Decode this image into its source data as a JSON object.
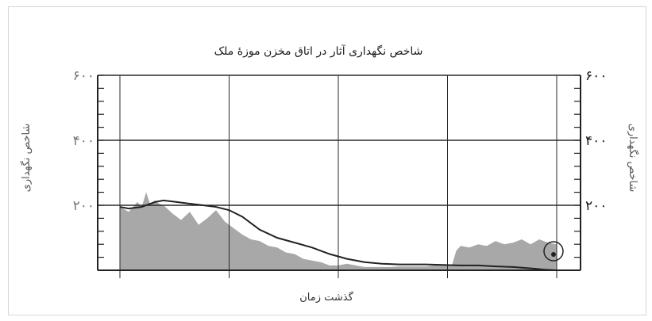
{
  "chart_data": {
    "type": "area",
    "title": "شاخص نگهداری آثار در اتاق مخزن موزهٔ ملک",
    "xlabel": "گذشت زمان",
    "ylabel": "شاخص نگهداری",
    "ylabel_right": "شاخص نگهداری",
    "ylim": [
      0,
      600
    ],
    "y_ticks": [
      200,
      400,
      600
    ],
    "y_tick_labels_left": [
      "۲۰۰",
      "۴۰۰",
      "۶۰۰"
    ],
    "y_tick_labels_right": [
      "۲۰۰",
      "۴۰۰",
      "۶۰۰"
    ],
    "x_gridlines": 5,
    "grid": true,
    "colors": {
      "area": "#a8a8a8",
      "line": "#222222",
      "grid": "#2a2a2a"
    },
    "series": [
      {
        "kind": "area",
        "x": [
          0,
          0.02,
          0.04,
          0.05,
          0.06,
          0.07,
          0.08,
          0.09,
          0.1,
          0.12,
          0.14,
          0.16,
          0.18,
          0.2,
          0.22,
          0.24,
          0.26,
          0.28,
          0.3,
          0.32,
          0.34,
          0.36,
          0.38,
          0.4,
          0.42,
          0.44,
          0.46,
          0.48,
          0.5,
          0.52,
          0.54,
          0.56,
          0.58,
          0.6,
          0.62,
          0.64,
          0.66,
          0.68,
          0.7,
          0.72,
          0.74,
          0.76,
          0.77,
          0.78,
          0.8,
          0.82,
          0.84,
          0.86,
          0.88,
          0.9,
          0.92,
          0.94,
          0.96,
          0.98,
          1.0
        ],
        "values": [
          195,
          180,
          210,
          195,
          240,
          200,
          215,
          205,
          200,
          175,
          155,
          180,
          140,
          160,
          185,
          150,
          130,
          110,
          95,
          90,
          75,
          70,
          55,
          50,
          35,
          30,
          25,
          15,
          15,
          20,
          15,
          10,
          10,
          10,
          10,
          12,
          12,
          12,
          12,
          15,
          15,
          15,
          60,
          75,
          70,
          80,
          75,
          90,
          80,
          85,
          95,
          80,
          95,
          85,
          80
        ]
      },
      {
        "kind": "line",
        "x": [
          0,
          0.02,
          0.05,
          0.08,
          0.1,
          0.13,
          0.16,
          0.19,
          0.22,
          0.25,
          0.28,
          0.3,
          0.32,
          0.36,
          0.4,
          0.44,
          0.48,
          0.52,
          0.56,
          0.6,
          0.64,
          0.7,
          0.78,
          0.82,
          0.86,
          0.9,
          0.95,
          0.97,
          1.0
        ],
        "values": [
          195,
          190,
          195,
          210,
          215,
          210,
          205,
          200,
          195,
          185,
          165,
          145,
          125,
          100,
          85,
          70,
          50,
          35,
          25,
          20,
          18,
          18,
          15,
          15,
          12,
          10,
          5,
          2,
          0
        ]
      }
    ]
  }
}
